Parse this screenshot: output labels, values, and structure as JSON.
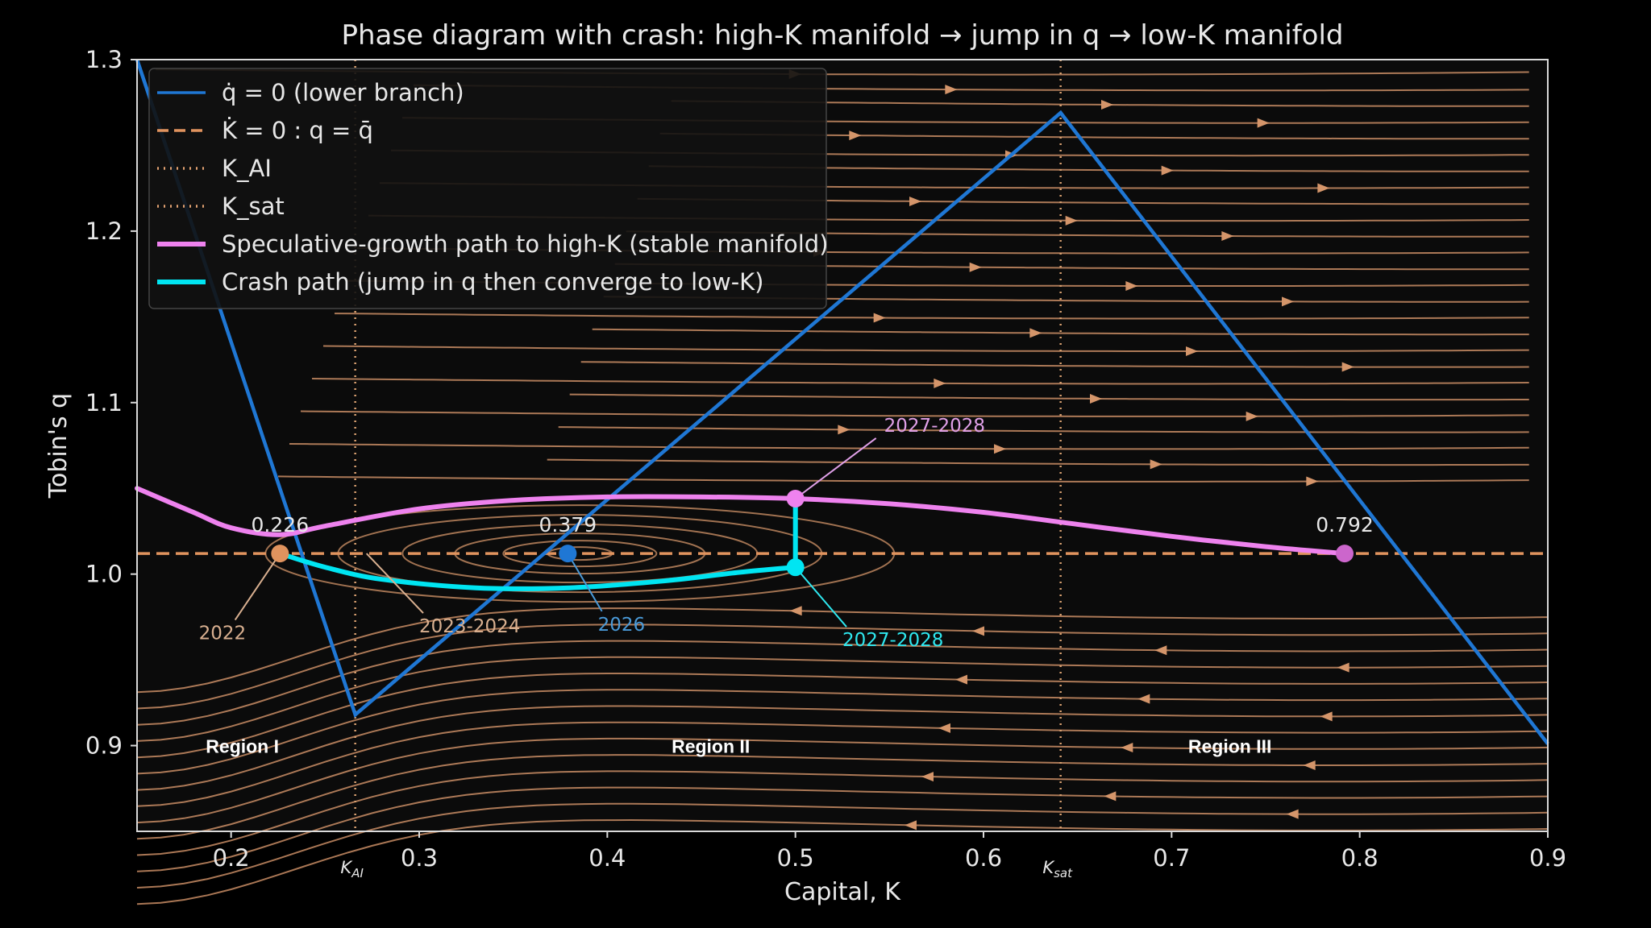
{
  "chart_data": {
    "type": "line",
    "title": "Phase diagram with crash: high-K manifold → jump in q → low-K manifold",
    "xlabel": "Capital, K",
    "ylabel": "Tobin's q",
    "xlim": [
      0.15,
      0.9
    ],
    "ylim": [
      0.85,
      1.3
    ],
    "xticks": [
      0.2,
      0.3,
      0.4,
      0.5,
      0.6,
      0.7,
      0.8,
      0.9
    ],
    "yticks": [
      0.9,
      1.0,
      1.1,
      1.2,
      1.3
    ],
    "grid": false,
    "legend_position": "upper-left",
    "legend": [
      {
        "label": "q̇ = 0 (lower branch)",
        "style": "solid",
        "color": "#1f77d4"
      },
      {
        "label": "K̇ = 0 : q = q̄",
        "style": "dashed",
        "color": "#e0935e"
      },
      {
        "label": "K_AI",
        "style": "dotted",
        "color": "#e0a070"
      },
      {
        "label": "K_sat",
        "style": "dotted",
        "color": "#e0a070"
      },
      {
        "label": "Speculative-growth path to high-K (stable manifold)",
        "style": "solid",
        "color": "#ee82ee"
      },
      {
        "label": "Crash path (jump in q then converge to low-K)",
        "style": "solid",
        "color": "#00e5f2"
      }
    ],
    "series": [
      {
        "name": "q̇ = 0 (lower branch)",
        "color": "#1f77d4",
        "x": [
          0.15,
          0.266,
          0.641,
          0.9
        ],
        "y": [
          1.3,
          0.918,
          1.269,
          0.901
        ]
      },
      {
        "name": "K̇ = 0 : q = q̄",
        "color": "#e0935e",
        "x": [
          0.15,
          0.9
        ],
        "y": [
          1.012,
          1.012
        ]
      },
      {
        "name": "Speculative-growth path to high-K (stable manifold)",
        "color": "#ee82ee",
        "x": [
          0.15,
          0.18,
          0.2,
          0.226,
          0.25,
          0.3,
          0.35,
          0.4,
          0.45,
          0.5,
          0.55,
          0.6,
          0.65,
          0.7,
          0.75,
          0.792
        ],
        "y": [
          1.05,
          1.036,
          1.027,
          1.023,
          1.028,
          1.038,
          1.043,
          1.045,
          1.045,
          1.044,
          1.041,
          1.036,
          1.029,
          1.022,
          1.016,
          1.012
        ]
      },
      {
        "name": "Crash path (jump in q then converge to low-K)",
        "color": "#00e5f2",
        "x": [
          0.5,
          0.5,
          0.47,
          0.43,
          0.38,
          0.33,
          0.28,
          0.25,
          0.226
        ],
        "y": [
          1.044,
          1.004,
          1.001,
          0.996,
          0.992,
          0.992,
          0.997,
          1.004,
          1.012
        ]
      }
    ],
    "vlines": [
      {
        "name": "K_AI",
        "x": 0.266
      },
      {
        "name": "K_sat",
        "x": 0.641
      }
    ],
    "points": [
      {
        "x": 0.226,
        "y": 1.012,
        "color": "#e0935e",
        "label": "0.226"
      },
      {
        "x": 0.379,
        "y": 1.012,
        "color": "#1f77d4",
        "label": "0.379"
      },
      {
        "x": 0.5,
        "y": 1.044,
        "color": "#ee82ee",
        "label": ""
      },
      {
        "x": 0.5,
        "y": 1.004,
        "color": "#00e5f2",
        "label": ""
      },
      {
        "x": 0.792,
        "y": 1.012,
        "color": "#cc66cc",
        "label": "0.792"
      }
    ],
    "annotations": [
      {
        "text": "2022",
        "color": "#d9b090",
        "x": 0.2,
        "y": 0.962,
        "target_x": 0.226,
        "target_y": 1.012
      },
      {
        "text": "2023-2024",
        "color": "#d9b090",
        "x": 0.3,
        "y": 0.966,
        "target_x": 0.272,
        "target_y": 1.012
      },
      {
        "text": "2026",
        "color": "#4a9ad8",
        "x": 0.395,
        "y": 0.967,
        "target_x": 0.379,
        "target_y": 1.012
      },
      {
        "text": "2027-2028",
        "color": "#e0a0e8",
        "x": 0.545,
        "y": 1.083,
        "target_x": 0.5,
        "target_y": 1.044
      },
      {
        "text": "2027-2028",
        "color": "#2ee8f0",
        "x": 0.525,
        "y": 0.958,
        "target_x": 0.5,
        "target_y": 1.004
      }
    ],
    "regions": [
      {
        "text": "Region I",
        "x": 0.206,
        "y": 0.9
      },
      {
        "text": "Region II",
        "x": 0.455,
        "y": 0.9
      },
      {
        "text": "Region III",
        "x": 0.731,
        "y": 0.9
      }
    ],
    "axis_markers": [
      {
        "text": "K",
        "sub": "AI",
        "x": 0.266
      },
      {
        "text": "K",
        "sub": "sat",
        "x": 0.641
      }
    ]
  },
  "colors": {
    "background": "#0b0b0b",
    "stream": "#d4956a",
    "axes": "#d9d9d9"
  }
}
